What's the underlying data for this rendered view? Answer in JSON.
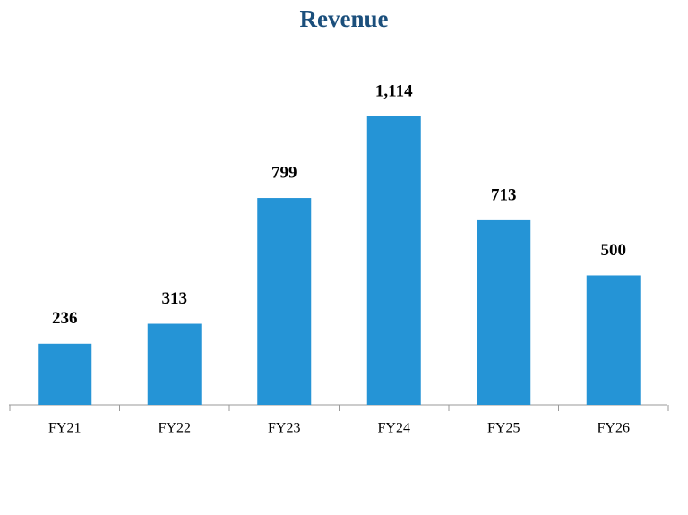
{
  "chart_data": {
    "type": "bar",
    "title": "Revenue",
    "categories": [
      "FY21",
      "FY22",
      "FY23",
      "FY24",
      "FY25",
      "FY26"
    ],
    "values": [
      236,
      313,
      799,
      1114,
      713,
      500
    ],
    "value_labels": [
      "236",
      "313",
      "799",
      "1,114",
      "713",
      "500"
    ],
    "color": "#2594d6"
  }
}
